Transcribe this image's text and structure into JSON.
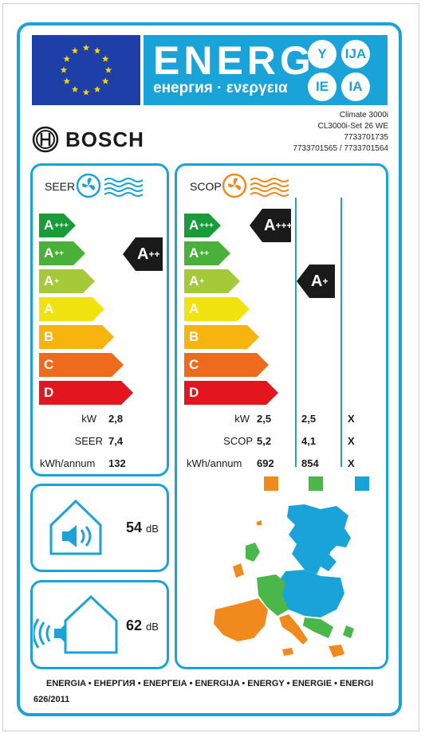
{
  "header": {
    "energy_title": "ENERG",
    "energy_subtitle": "енергия · ενεργεια",
    "language_badges": [
      "Y",
      "IJA",
      "IE",
      "IA"
    ]
  },
  "brand": {
    "name": "BOSCH"
  },
  "model_info": {
    "line1": "Climate 3000i",
    "line2": "CL3000i-Set 26 WE",
    "line3": "7733701735",
    "line4": "7733701565 / 7733701564"
  },
  "cooling": {
    "title": "SEER",
    "classes": [
      {
        "letter": "A",
        "sup": "+++",
        "color": "#1a9b3a"
      },
      {
        "letter": "A",
        "sup": "++",
        "color": "#49b13a"
      },
      {
        "letter": "A",
        "sup": "+",
        "color": "#a6c93a"
      },
      {
        "letter": "A",
        "sup": "",
        "color": "#f1e30f"
      },
      {
        "letter": "B",
        "sup": "",
        "color": "#f7b40f"
      },
      {
        "letter": "C",
        "sup": "",
        "color": "#ee6a1c"
      },
      {
        "letter": "D",
        "sup": "",
        "color": "#e3161f"
      }
    ],
    "rating": {
      "letter": "A",
      "sup": "++"
    },
    "metrics": [
      {
        "label": "kW",
        "value": "2,8"
      },
      {
        "label": "SEER",
        "value": "7,4"
      },
      {
        "label": "kWh/annum",
        "value": "132"
      }
    ]
  },
  "heating": {
    "title": "SCOP",
    "classes": [
      {
        "letter": "A",
        "sup": "+++",
        "color": "#1a9b3a"
      },
      {
        "letter": "A",
        "sup": "++",
        "color": "#49b13a"
      },
      {
        "letter": "A",
        "sup": "+",
        "color": "#a6c93a"
      },
      {
        "letter": "A",
        "sup": "",
        "color": "#f1e30f"
      },
      {
        "letter": "B",
        "sup": "",
        "color": "#f7b40f"
      },
      {
        "letter": "C",
        "sup": "",
        "color": "#ee6a1c"
      },
      {
        "letter": "D",
        "sup": "",
        "color": "#e3161f"
      }
    ],
    "rating_warm": {
      "letter": "A",
      "sup": "+++"
    },
    "rating_average": {
      "letter": "A",
      "sup": "+"
    },
    "metric_labels": [
      "kW",
      "SCOP",
      "kWh/annum"
    ],
    "columns": [
      {
        "zone": "warmer",
        "color": "#f08a1c",
        "values": [
          "2,5",
          "5,2",
          "692"
        ]
      },
      {
        "zone": "average",
        "color": "#4bb74a",
        "values": [
          "2,5",
          "4,1",
          "854"
        ]
      },
      {
        "zone": "colder",
        "color": "#1aa3d9",
        "values": [
          "X",
          "X",
          "X"
        ]
      }
    ]
  },
  "noise": {
    "indoor": {
      "value": "54",
      "unit": "dB"
    },
    "outdoor": {
      "value": "62",
      "unit": "dB"
    }
  },
  "footer": {
    "languages": "ENERGIA • ЕНЕРГИЯ • ΕΝΕΡΓΕΙΑ • ENERGIJA • ENERGY • ENERGIE • ENERGI",
    "regulation": "626/2011"
  },
  "colors": {
    "accent": "#1aa3d9",
    "flag": "#1f3fa8",
    "star": "#ffd500"
  }
}
